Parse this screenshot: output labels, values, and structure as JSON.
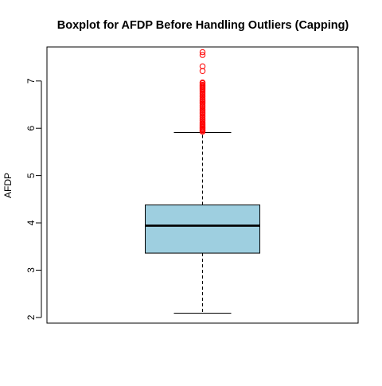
{
  "chart_data": {
    "type": "boxplot",
    "title": "Boxplot for AFDP Before Handling Outliers (Capping)",
    "xlabel": "",
    "ylabel": "AFDP",
    "ylim": [
      1.88,
      7.72
    ],
    "y_ticks": [
      2,
      3,
      4,
      5,
      6,
      7
    ],
    "y_tick_labels": [
      "2",
      "3",
      "4",
      "5",
      "6",
      "7"
    ],
    "grid": false,
    "legend": "none",
    "box": {
      "lower_whisker": 2.09,
      "q1": 3.36,
      "median": 3.94,
      "q3": 4.38,
      "upper_whisker": 5.91
    },
    "outliers": [
      7.61,
      7.55,
      7.31,
      7.21,
      6.97,
      6.95,
      6.92,
      6.9,
      6.88,
      6.86,
      6.84,
      6.82,
      6.79,
      6.76,
      6.73,
      6.7,
      6.67,
      6.64,
      6.61,
      6.58,
      6.55,
      6.52,
      6.49,
      6.46,
      6.43,
      6.4,
      6.37,
      6.34,
      6.31,
      6.28,
      6.25,
      6.22,
      6.19,
      6.16,
      6.13,
      6.1,
      6.08,
      6.06,
      6.04,
      6.02,
      6.0,
      5.98,
      5.96,
      5.94,
      5.93
    ],
    "colors": {
      "box_fill": "#9ecfe0",
      "outlier": "#ff0000",
      "box_stroke": "#000000"
    }
  }
}
